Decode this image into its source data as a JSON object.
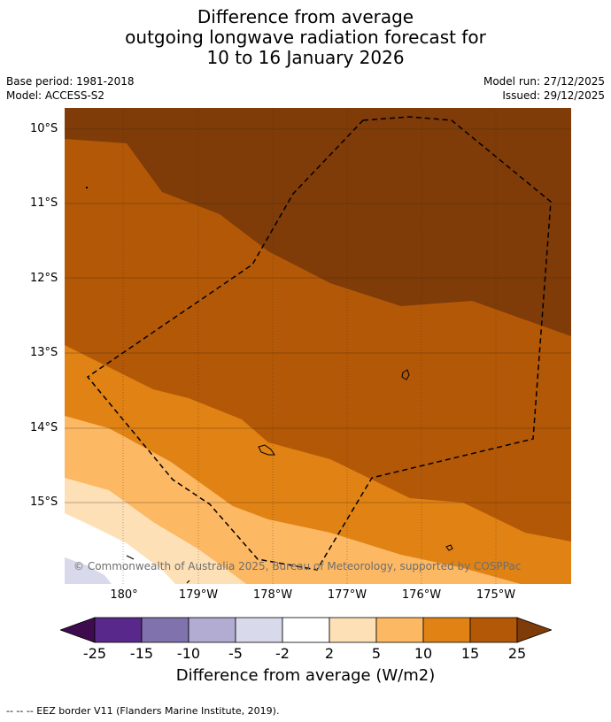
{
  "title": {
    "line1": "Difference from average",
    "line2": "outgoing longwave radiation forecast for",
    "line3": "10 to 16 January 2026"
  },
  "meta": {
    "base_period": "Base period: 1981-2018",
    "model": "Model: ACCESS-S2",
    "model_run": "Model run: 27/12/2025",
    "issued": "Issued: 29/12/2025"
  },
  "axes": {
    "lat_labels": [
      "10°S",
      "11°S",
      "12°S",
      "13°S",
      "14°S",
      "15°S"
    ],
    "lon_labels": [
      "180°",
      "179°W",
      "178°W",
      "177°W",
      "176°W",
      "175°W"
    ]
  },
  "colorbar": {
    "ticks": [
      "-25",
      "-15",
      "-10",
      "-5",
      "-2",
      "2",
      "5",
      "10",
      "15",
      "25"
    ],
    "colors": [
      "#3f0b4f",
      "#58288a",
      "#8072ac",
      "#b2abd2",
      "#d8daeb",
      "#ffffff",
      "#fee0b6",
      "#fdb863",
      "#e08214",
      "#b35806",
      "#7f3b08"
    ],
    "label": "Difference from average (W/m2)"
  },
  "map": {
    "colors": {
      "deep_brown": "#7f3b08",
      "brown": "#b35806",
      "orange": "#e08214",
      "light_orange": "#fdb863",
      "pale": "#fee0b6",
      "white": "#ffffff",
      "lavender": "#d8daeb"
    },
    "copyright": "© Commonwealth of Australia 2025, Bureau of Meteorology, supported by COSPPac"
  },
  "footnote": "--  --  -- EEZ border V11 (Flanders Marine Institute, 2019)."
}
